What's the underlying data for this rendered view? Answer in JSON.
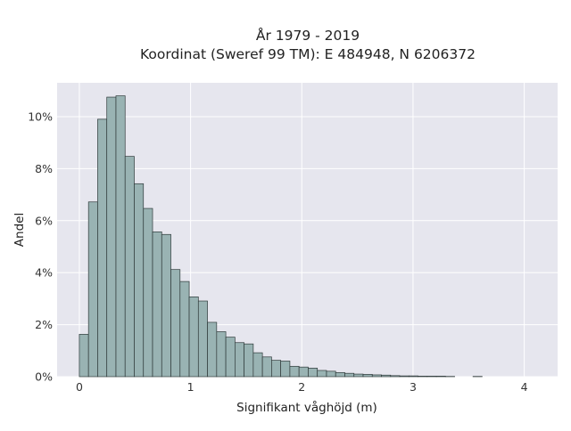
{
  "chart_data": {
    "type": "bar",
    "title_lines": [
      "År 1979 - 2019",
      "Koordinat (Sweref 99 TM): E 484948, N 6206372"
    ],
    "xlabel": "Signifikant våghöjd (m)",
    "ylabel": "Andel",
    "xlim": [
      -0.2,
      4.3
    ],
    "ylim": [
      0,
      11.3
    ],
    "x_ticks": [
      {
        "value": 0,
        "label": "0"
      },
      {
        "value": 1,
        "label": "1"
      },
      {
        "value": 2,
        "label": "2"
      },
      {
        "value": 3,
        "label": "3"
      },
      {
        "value": 4,
        "label": "4"
      }
    ],
    "y_ticks": [
      {
        "value": 0,
        "label": "0%"
      },
      {
        "value": 2,
        "label": "2%"
      },
      {
        "value": 4,
        "label": "4%"
      },
      {
        "value": 6,
        "label": "6%"
      },
      {
        "value": 8,
        "label": "8%"
      },
      {
        "value": 10,
        "label": "10%"
      }
    ],
    "grid": true,
    "bin_width": 0.0823,
    "bins_start": [
      0,
      0.0823,
      0.1646,
      0.2469,
      0.3292,
      0.4115,
      0.4938,
      0.5761,
      0.6584,
      0.7407,
      0.823,
      0.9053,
      0.9876,
      1.0699,
      1.1522,
      1.2345,
      1.3168,
      1.3991,
      1.4814,
      1.5637,
      1.646,
      1.7283,
      1.8106,
      1.8929,
      1.9752,
      2.0575,
      2.1398,
      2.2221,
      2.3044,
      2.3867,
      2.469,
      2.5513,
      2.6336,
      2.7159,
      2.7982,
      2.8805,
      2.9628,
      3.0451,
      3.1274,
      3.2097,
      3.292,
      3.5389
    ],
    "values": [
      1.63,
      6.72,
      9.9,
      10.75,
      10.8,
      8.47,
      7.42,
      6.47,
      5.57,
      5.47,
      4.12,
      3.66,
      3.07,
      2.91,
      2.09,
      1.73,
      1.52,
      1.31,
      1.26,
      0.92,
      0.76,
      0.63,
      0.6,
      0.4,
      0.37,
      0.33,
      0.24,
      0.21,
      0.16,
      0.13,
      0.1,
      0.09,
      0.07,
      0.06,
      0.04,
      0.03,
      0.03,
      0.02,
      0.02,
      0.02,
      0.01,
      0.01
    ],
    "colors": {
      "bar_fill": "#99b3b3",
      "bar_edge": "#2f3a3a",
      "plot_bg": "#e6e6ee",
      "grid": "#ffffff"
    }
  }
}
